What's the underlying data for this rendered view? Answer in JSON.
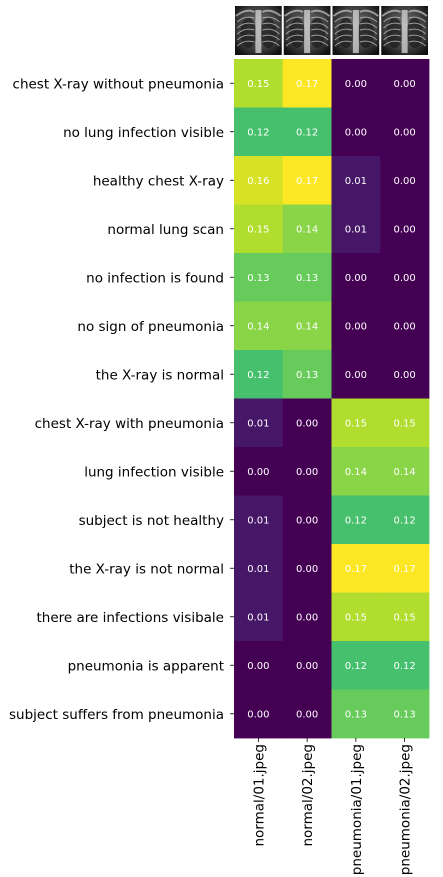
{
  "chart_data": {
    "type": "heatmap",
    "title": "",
    "xlabel": "",
    "ylabel": "",
    "colormap": "viridis",
    "value_range": [
      0.0,
      0.17
    ],
    "columns": [
      "normal/01.jpeg",
      "normal/02.jpeg",
      "pneumonia/01.jpeg",
      "pneumonia/02.jpeg"
    ],
    "rows": [
      "chest X-ray without pneumonia",
      "no lung infection visible",
      "healthy chest X-ray",
      "normal lung scan",
      "no infection is found",
      "no sign of pneumonia",
      "the X-ray is normal",
      "chest X-ray with pneumonia",
      "lung infection visible",
      "subject is not healthy",
      "the X-ray is not normal",
      "there are infections visibale",
      "pneumonia is apparent",
      "subject suffers from pneumonia"
    ],
    "values": [
      [
        0.15,
        0.17,
        0.0,
        0.0
      ],
      [
        0.12,
        0.12,
        0.0,
        0.0
      ],
      [
        0.16,
        0.17,
        0.01,
        0.0
      ],
      [
        0.15,
        0.14,
        0.01,
        0.0
      ],
      [
        0.13,
        0.13,
        0.0,
        0.0
      ],
      [
        0.14,
        0.14,
        0.0,
        0.0
      ],
      [
        0.12,
        0.13,
        0.0,
        0.0
      ],
      [
        0.01,
        0.0,
        0.15,
        0.15
      ],
      [
        0.0,
        0.0,
        0.14,
        0.14
      ],
      [
        0.01,
        0.0,
        0.12,
        0.12
      ],
      [
        0.01,
        0.0,
        0.17,
        0.17
      ],
      [
        0.01,
        0.0,
        0.15,
        0.15
      ],
      [
        0.0,
        0.0,
        0.12,
        0.12
      ],
      [
        0.0,
        0.0,
        0.13,
        0.13
      ]
    ],
    "value_format": "0.00",
    "column_thumbnails": [
      "chest-xray-normal-icon",
      "chest-xray-normal-icon",
      "chest-xray-pneumonia-icon",
      "chest-xray-pneumonia-icon"
    ],
    "grid": false,
    "legend": "none"
  }
}
